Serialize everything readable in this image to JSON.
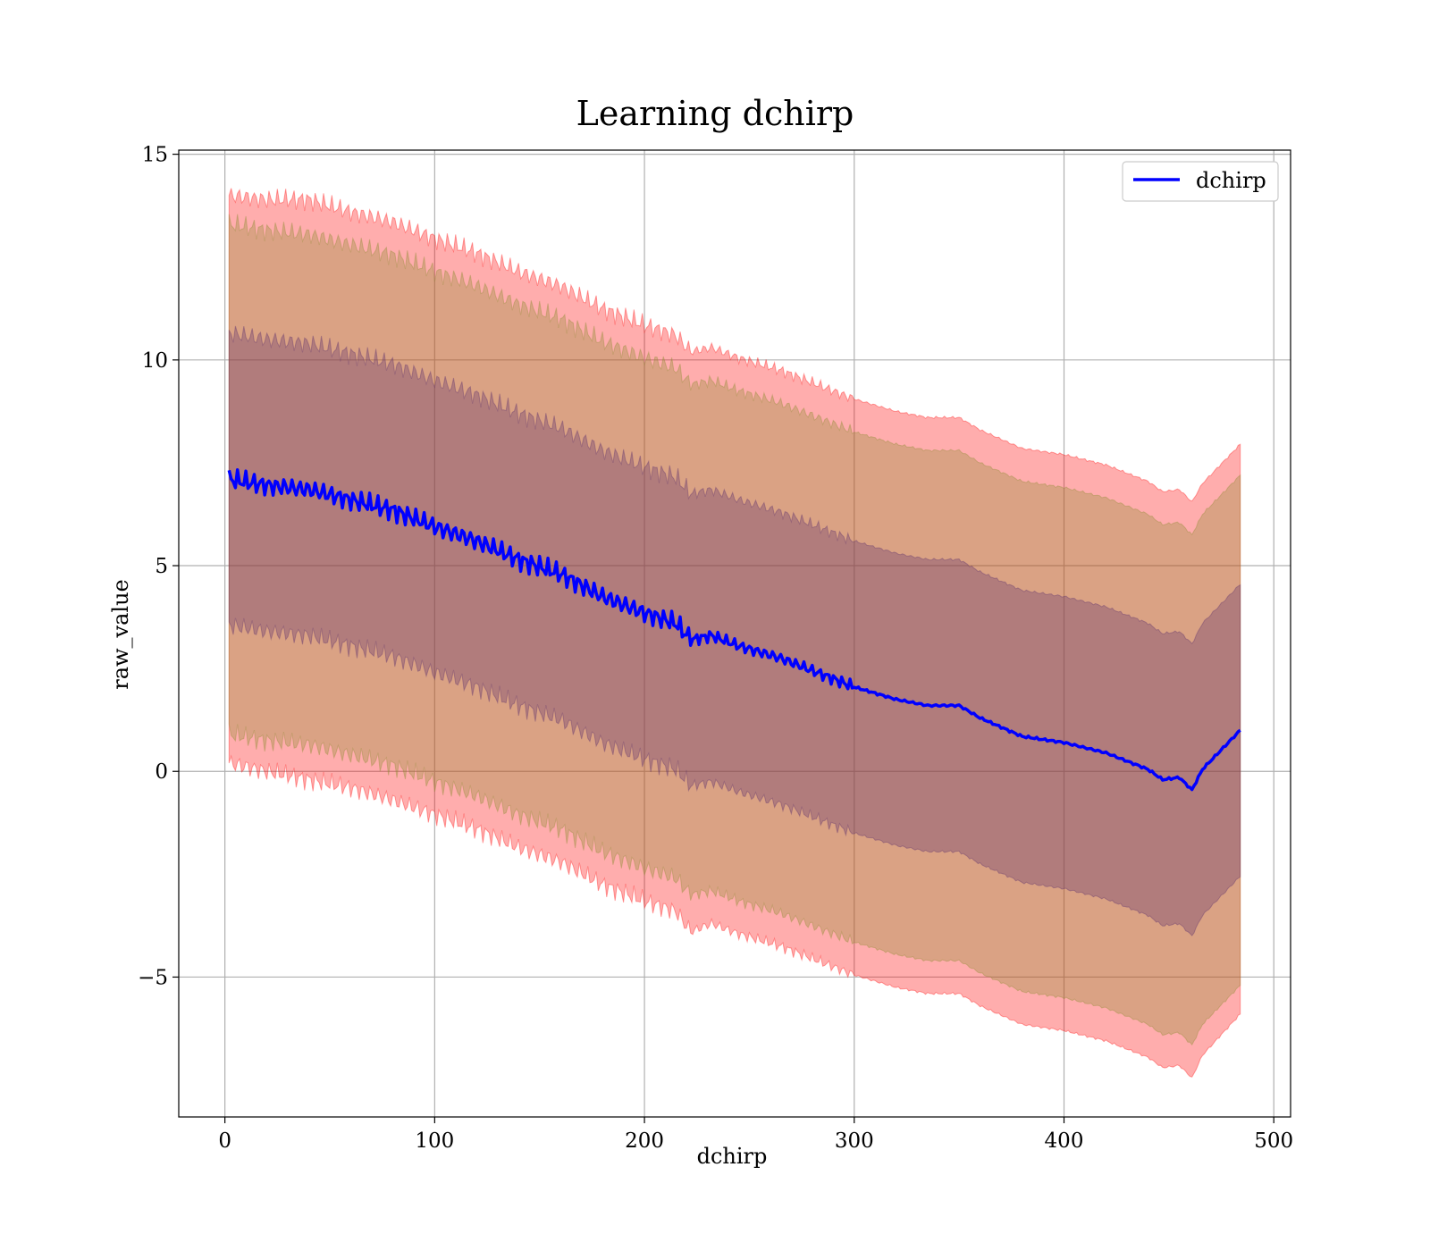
{
  "chart_data": {
    "type": "line",
    "title": "Learning dchirp",
    "xlabel": "dchirp",
    "ylabel": "raw_value",
    "xlim": [
      -22,
      508
    ],
    "ylim": [
      -8.4,
      15.1
    ],
    "x_ticks": [
      0,
      100,
      200,
      300,
      400,
      500
    ],
    "y_ticks": [
      -5,
      0,
      5,
      10,
      15
    ],
    "x_tick_labels": [
      "0",
      "100",
      "200",
      "300",
      "400",
      "500"
    ],
    "y_tick_labels": [
      "−5",
      "0",
      "5",
      "10",
      "15"
    ],
    "grid": true,
    "legend_position": "top-right",
    "series": [
      {
        "name": "dchirp",
        "color": "#0000ff",
        "x": [
          2,
          20,
          40,
          60,
          80,
          100,
          120,
          140,
          160,
          180,
          200,
          215,
          222,
          232,
          245,
          265,
          280,
          300,
          320,
          335,
          350,
          360,
          380,
          400,
          420,
          440,
          447,
          455,
          461,
          466,
          484
        ],
        "y": [
          7.1,
          6.95,
          6.85,
          6.6,
          6.35,
          5.95,
          5.6,
          5.15,
          4.8,
          4.25,
          3.85,
          3.6,
          3.2,
          3.3,
          3.05,
          2.75,
          2.45,
          2.05,
          1.75,
          1.6,
          1.6,
          1.3,
          0.85,
          0.7,
          0.45,
          0.05,
          -0.2,
          -0.15,
          -0.45,
          0.05,
          1.0
        ]
      }
    ],
    "bands": [
      {
        "color": "#ff0000",
        "x": [
          2,
          20,
          40,
          60,
          80,
          100,
          120,
          140,
          160,
          180,
          200,
          215,
          222,
          232,
          245,
          265,
          280,
          300,
          320,
          335,
          350,
          360,
          380,
          400,
          420,
          440,
          447,
          455,
          461,
          466,
          484
        ],
        "lower": [
          0.2,
          0.0,
          -0.2,
          -0.4,
          -0.7,
          -1.05,
          -1.4,
          -1.85,
          -2.2,
          -2.75,
          -3.15,
          -3.4,
          -3.9,
          -3.7,
          -3.95,
          -4.25,
          -4.55,
          -4.95,
          -5.25,
          -5.4,
          -5.4,
          -5.7,
          -6.15,
          -6.3,
          -6.55,
          -6.95,
          -7.2,
          -7.15,
          -7.45,
          -6.9,
          -5.9
        ],
        "upper": [
          14.0,
          13.9,
          13.9,
          13.6,
          13.35,
          12.95,
          12.6,
          12.15,
          11.8,
          11.25,
          10.85,
          10.6,
          10.2,
          10.3,
          10.05,
          9.75,
          9.45,
          9.05,
          8.75,
          8.6,
          8.6,
          8.3,
          7.85,
          7.7,
          7.45,
          7.05,
          6.8,
          6.85,
          6.55,
          7.0,
          7.95
        ]
      },
      {
        "color": "#8b8b30",
        "x": [
          2,
          20,
          40,
          60,
          80,
          100,
          120,
          140,
          160,
          180,
          200,
          215,
          222,
          232,
          245,
          265,
          280,
          300,
          320,
          335,
          350,
          360,
          380,
          400,
          420,
          440,
          447,
          455,
          461,
          466,
          484
        ],
        "lower": [
          0.9,
          0.75,
          0.65,
          0.4,
          0.15,
          -0.25,
          -0.6,
          -1.05,
          -1.4,
          -1.95,
          -2.35,
          -2.6,
          -3.0,
          -2.9,
          -3.15,
          -3.45,
          -3.75,
          -4.15,
          -4.45,
          -4.6,
          -4.6,
          -4.9,
          -5.35,
          -5.5,
          -5.75,
          -6.15,
          -6.4,
          -6.35,
          -6.65,
          -6.15,
          -5.2
        ],
        "upper": [
          13.3,
          13.15,
          13.05,
          12.8,
          12.55,
          12.15,
          11.8,
          11.35,
          11.0,
          10.45,
          10.05,
          9.8,
          9.4,
          9.5,
          9.25,
          8.95,
          8.65,
          8.25,
          7.95,
          7.8,
          7.8,
          7.5,
          7.05,
          6.9,
          6.65,
          6.25,
          6.0,
          6.05,
          5.75,
          6.25,
          7.2
        ]
      },
      {
        "color": "#5a2d6e",
        "x": [
          2,
          20,
          40,
          60,
          80,
          100,
          120,
          140,
          160,
          180,
          200,
          215,
          222,
          232,
          245,
          265,
          280,
          300,
          320,
          335,
          350,
          360,
          380,
          400,
          420,
          440,
          447,
          455,
          461,
          466,
          484
        ],
        "lower": [
          3.55,
          3.4,
          3.3,
          3.05,
          2.8,
          2.4,
          2.05,
          1.6,
          1.25,
          0.7,
          0.3,
          0.05,
          -0.35,
          -0.25,
          -0.5,
          -0.8,
          -1.1,
          -1.5,
          -1.8,
          -1.95,
          -1.95,
          -2.25,
          -2.7,
          -2.85,
          -3.1,
          -3.5,
          -3.75,
          -3.7,
          -4.0,
          -3.5,
          -2.55
        ],
        "upper": [
          10.65,
          10.5,
          10.4,
          10.15,
          9.9,
          9.5,
          9.15,
          8.7,
          8.35,
          7.8,
          7.4,
          7.15,
          6.75,
          6.85,
          6.6,
          6.3,
          6.0,
          5.6,
          5.3,
          5.15,
          5.15,
          4.85,
          4.4,
          4.25,
          4.0,
          3.6,
          3.35,
          3.4,
          3.1,
          3.6,
          4.55
        ]
      }
    ]
  }
}
